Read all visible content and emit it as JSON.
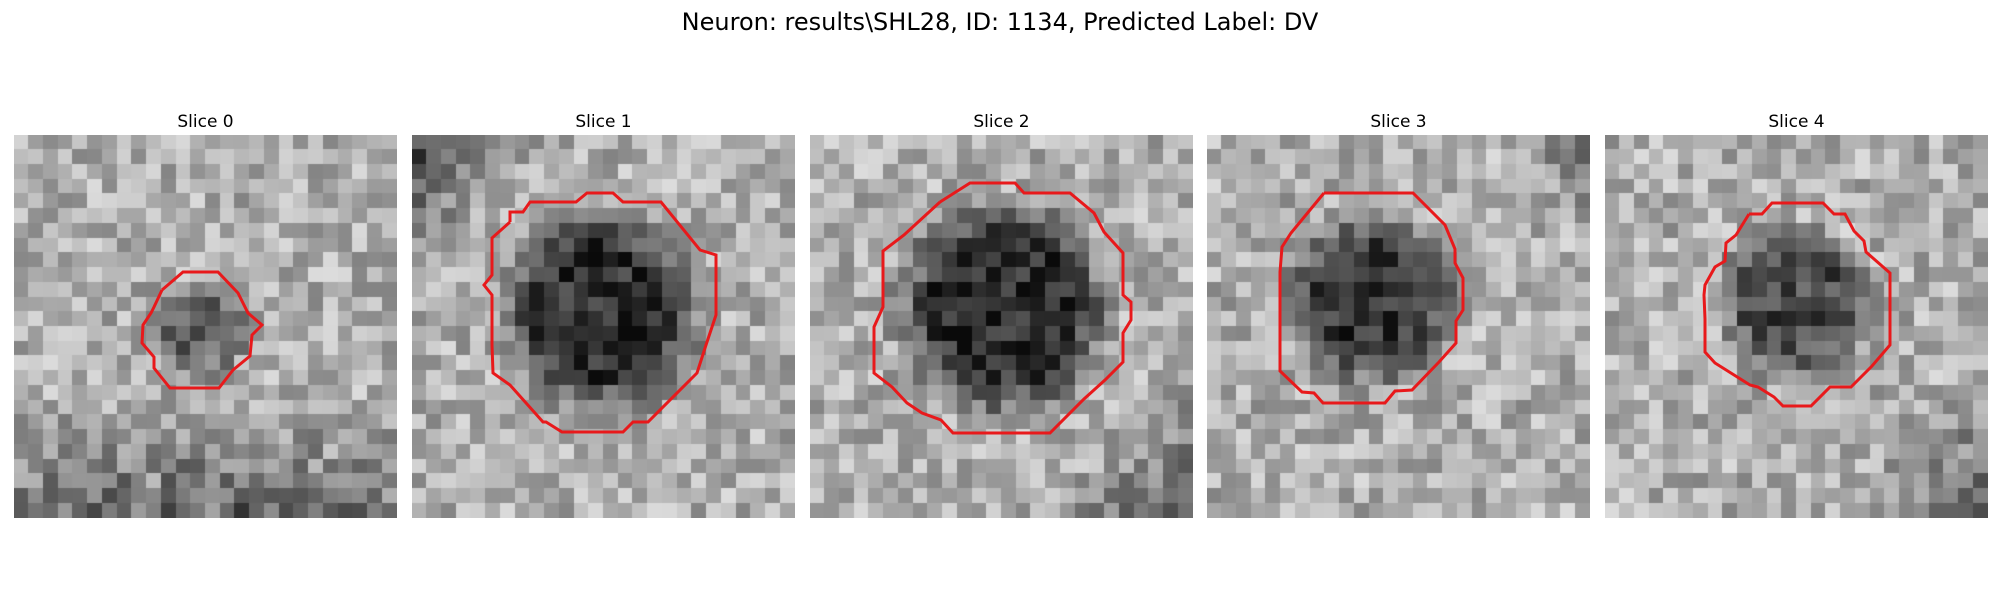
{
  "figure": {
    "title": "Neuron: results\\SHL28, ID: 1134, Predicted Label: DV"
  },
  "contour_color": "#e8191b",
  "panels": [
    {
      "title": "Slice 0",
      "seed": 11,
      "blob": 0.55,
      "edge": "soft"
    },
    {
      "title": "Slice 1",
      "seed": 23,
      "blob": 0.95,
      "edge": "dark-corner-tl"
    },
    {
      "title": "Slice 2",
      "seed": 37,
      "blob": 1.0,
      "edge": "dark-corner-br"
    },
    {
      "title": "Slice 3",
      "seed": 41,
      "blob": 0.9,
      "edge": "dark-corner-tr"
    },
    {
      "title": "Slice 4",
      "seed": 53,
      "blob": 0.75,
      "edge": "dark-corner-br"
    }
  ]
}
